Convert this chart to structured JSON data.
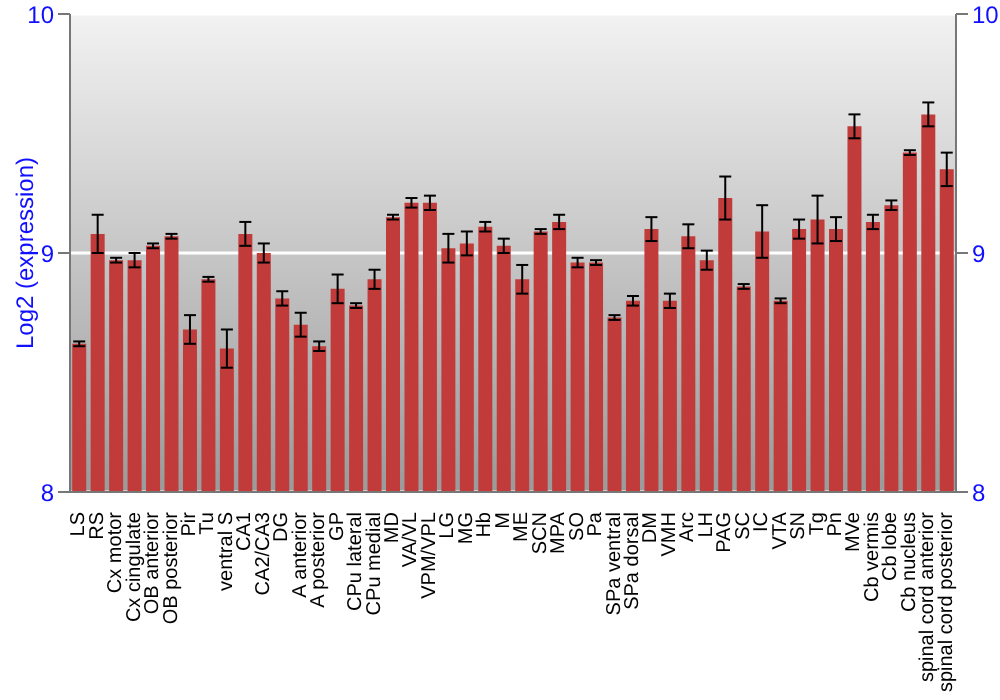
{
  "chart_data": {
    "type": "bar",
    "ylabel": "Log2 (expression)",
    "categories": [
      "LS",
      "RS",
      "Cx motor",
      "Cx cingulate",
      "OB anterior",
      "OB posterior",
      "Pir",
      "Tu",
      "ventral S",
      "CA1",
      "CA2/CA3",
      "DG",
      "A anterior",
      "A posterior",
      "GP",
      "CPu lateral",
      "CPu medial",
      "MD",
      "VA/VL",
      "VPM/VPL",
      "LG",
      "MG",
      "Hb",
      "M",
      "ME",
      "SCN",
      "MPA",
      "SO",
      "Pa",
      "SPa ventral",
      "SPa dorsal",
      "DM",
      "VMH",
      "Arc",
      "LH",
      "PAG",
      "SC",
      "IC",
      "VTA",
      "SN",
      "Tg",
      "Pn",
      "MVe",
      "Cb vermis",
      "Cb lobe",
      "Cb nucleus",
      "spinal cord anterior",
      "spinal cord posterior"
    ],
    "values": [
      8.62,
      9.08,
      8.97,
      8.97,
      9.03,
      9.07,
      8.68,
      8.89,
      8.6,
      9.08,
      9.0,
      8.81,
      8.7,
      8.61,
      8.85,
      8.78,
      8.89,
      9.15,
      9.21,
      9.21,
      9.02,
      9.04,
      9.11,
      9.03,
      8.89,
      9.09,
      9.13,
      8.96,
      8.96,
      8.73,
      8.8,
      9.1,
      8.8,
      9.07,
      8.97,
      9.23,
      8.86,
      9.09,
      8.8,
      9.1,
      9.14,
      9.1,
      9.53,
      9.13,
      9.2,
      9.42,
      9.58,
      9.35
    ],
    "errors": [
      0.01,
      0.08,
      0.01,
      0.03,
      0.01,
      0.01,
      0.06,
      0.01,
      0.08,
      0.05,
      0.04,
      0.03,
      0.05,
      0.02,
      0.06,
      0.01,
      0.04,
      0.01,
      0.02,
      0.03,
      0.06,
      0.05,
      0.02,
      0.03,
      0.06,
      0.01,
      0.03,
      0.02,
      0.01,
      0.01,
      0.02,
      0.05,
      0.03,
      0.05,
      0.04,
      0.09,
      0.01,
      0.11,
      0.01,
      0.04,
      0.1,
      0.05,
      0.05,
      0.03,
      0.02,
      0.01,
      0.05,
      0.07
    ],
    "color": "#c23b3b",
    "ylim": [
      8,
      10
    ],
    "yticks": [
      8,
      9,
      10
    ],
    "y2lim": [
      8,
      10
    ],
    "y2ticks": [
      8,
      9,
      10
    ],
    "grid": "y"
  }
}
